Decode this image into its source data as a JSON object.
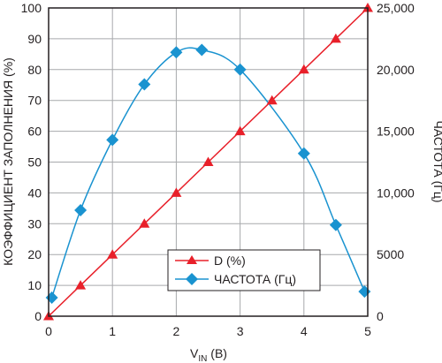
{
  "chart_data": {
    "type": "line",
    "title": "",
    "xlabel": {
      "main": "V",
      "sub": "IN",
      "unit": " (B)"
    },
    "ylabel_left": "КОЭФФИЦИЕНТ ЗАПОЛНЕНИЯ (%)",
    "ylabel_right": "ЧАСТОТА (Гц)",
    "xlim": [
      0,
      5
    ],
    "ylim_left": [
      0,
      100
    ],
    "ylim_right": [
      0,
      25000
    ],
    "x_ticks": [
      "0",
      "1",
      "2",
      "3",
      "4",
      "5"
    ],
    "y_ticks_left": [
      "0",
      "10",
      "20",
      "30",
      "40",
      "50",
      "60",
      "70",
      "80",
      "90",
      "100"
    ],
    "y_ticks_right": [
      "0",
      "5000",
      "10,000",
      "15,000",
      "20,000",
      "25,000"
    ],
    "grid": true,
    "legend_position": "bottom-center",
    "series": [
      {
        "name": "D (%)",
        "axis": "left",
        "marker": "triangle",
        "color": "#e8202a",
        "x": [
          0,
          0.5,
          1,
          1.5,
          2,
          2.5,
          3,
          3.5,
          4,
          4.5,
          5
        ],
        "y": [
          0,
          10,
          20,
          30,
          40,
          50,
          60,
          70,
          80,
          90,
          100
        ]
      },
      {
        "name": "ЧАСТОТА (Гц)",
        "axis": "right",
        "marker": "diamond",
        "color": "#1a93d0",
        "x": [
          0.05,
          0.5,
          1,
          1.5,
          2,
          2.4,
          3,
          4,
          4.5,
          4.95
        ],
        "y": [
          1500,
          8600,
          14300,
          18800,
          21400,
          21600,
          20000,
          13200,
          7400,
          2000
        ]
      }
    ]
  }
}
